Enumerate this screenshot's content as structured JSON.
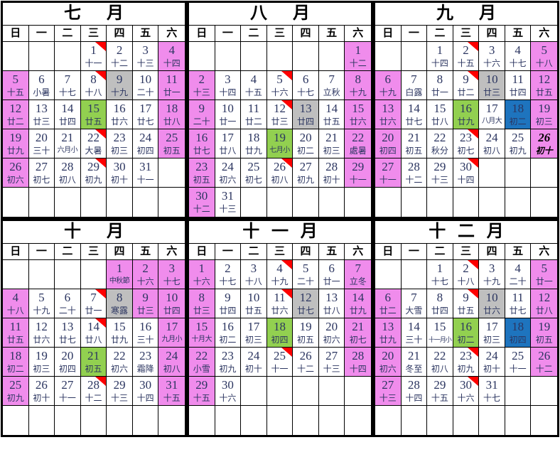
{
  "calendar": {
    "day_headers": [
      "日",
      "一",
      "二",
      "三",
      "四",
      "五",
      "六"
    ],
    "colors": {
      "pink": "#F08CEC",
      "gray": "#BFBFBF",
      "green": "#92D050",
      "blue": "#1E74BE",
      "red": "#FF0000",
      "ink": "#2B3560"
    },
    "months": [
      {
        "title": "七月",
        "cells": [
          {},
          {},
          {},
          {
            "d": "1",
            "l": "十一",
            "tri": true
          },
          {
            "d": "2",
            "l": "十二"
          },
          {
            "d": "3",
            "l": "十三"
          },
          {
            "d": "4",
            "l": "十四",
            "bg": "pink"
          },
          {
            "d": "5",
            "l": "十五",
            "bg": "pink"
          },
          {
            "d": "6",
            "l": "小暑"
          },
          {
            "d": "7",
            "l": "十七"
          },
          {
            "d": "8",
            "l": "十八",
            "tri": true
          },
          {
            "d": "9",
            "l": "十九",
            "bg": "gray"
          },
          {
            "d": "10",
            "l": "二十"
          },
          {
            "d": "11",
            "l": "廿一",
            "bg": "pink"
          },
          {
            "d": "12",
            "l": "廿二",
            "bg": "pink"
          },
          {
            "d": "13",
            "l": "廿三"
          },
          {
            "d": "14",
            "l": "廿四"
          },
          {
            "d": "15",
            "l": "廿五",
            "bg": "green"
          },
          {
            "d": "16",
            "l": "廿六"
          },
          {
            "d": "17",
            "l": "廿七"
          },
          {
            "d": "18",
            "l": "廿八",
            "bg": "pink"
          },
          {
            "d": "19",
            "l": "廿九",
            "bg": "pink"
          },
          {
            "d": "20",
            "l": "三十"
          },
          {
            "d": "21",
            "l": "六月小"
          },
          {
            "d": "22",
            "l": "大暑",
            "tri": true
          },
          {
            "d": "23",
            "l": "初三"
          },
          {
            "d": "24",
            "l": "初四"
          },
          {
            "d": "25",
            "l": "初五",
            "bg": "pink"
          },
          {
            "d": "26",
            "l": "初六",
            "bg": "pink"
          },
          {
            "d": "27",
            "l": "初七"
          },
          {
            "d": "28",
            "l": "初八"
          },
          {
            "d": "29",
            "l": "初九",
            "tri": true
          },
          {
            "d": "30",
            "l": "初十"
          },
          {
            "d": "31",
            "l": "十一"
          },
          {},
          {},
          {},
          {},
          {},
          {},
          {},
          {}
        ]
      },
      {
        "title": "八月",
        "cells": [
          {},
          {},
          {},
          {},
          {},
          {},
          {
            "d": "1",
            "l": "十二",
            "bg": "pink"
          },
          {
            "d": "2",
            "l": "十三",
            "bg": "pink"
          },
          {
            "d": "3",
            "l": "十四"
          },
          {
            "d": "4",
            "l": "十五"
          },
          {
            "d": "5",
            "l": "十六",
            "tri": true
          },
          {
            "d": "6",
            "l": "十七"
          },
          {
            "d": "7",
            "l": "立秋"
          },
          {
            "d": "8",
            "l": "十九",
            "bg": "pink"
          },
          {
            "d": "9",
            "l": "二十",
            "bg": "pink"
          },
          {
            "d": "10",
            "l": "廿一"
          },
          {
            "d": "11",
            "l": "廿二"
          },
          {
            "d": "12",
            "l": "廿三",
            "tri": true
          },
          {
            "d": "13",
            "l": "廿四",
            "bg": "gray"
          },
          {
            "d": "14",
            "l": "廿五"
          },
          {
            "d": "15",
            "l": "廿六",
            "bg": "pink"
          },
          {
            "d": "16",
            "l": "廿七",
            "bg": "pink"
          },
          {
            "d": "17",
            "l": "廿八"
          },
          {
            "d": "18",
            "l": "廿九"
          },
          {
            "d": "19",
            "l": "七月小",
            "bg": "green"
          },
          {
            "d": "20",
            "l": "初二"
          },
          {
            "d": "21",
            "l": "初三"
          },
          {
            "d": "22",
            "l": "處暑",
            "bg": "pink"
          },
          {
            "d": "23",
            "l": "初五",
            "bg": "pink"
          },
          {
            "d": "24",
            "l": "初六"
          },
          {
            "d": "25",
            "l": "初七"
          },
          {
            "d": "26",
            "l": "初八",
            "tri": true
          },
          {
            "d": "27",
            "l": "初九"
          },
          {
            "d": "28",
            "l": "初十"
          },
          {
            "d": "29",
            "l": "十一",
            "bg": "pink"
          },
          {
            "d": "30",
            "l": "十二",
            "bg": "pink"
          },
          {
            "d": "31",
            "l": "十三"
          },
          {},
          {},
          {},
          {},
          {}
        ]
      },
      {
        "title": "九月",
        "cells": [
          {},
          {},
          {
            "d": "1",
            "l": "十四"
          },
          {
            "d": "2",
            "l": "十五",
            "tri": true
          },
          {
            "d": "3",
            "l": "十六"
          },
          {
            "d": "4",
            "l": "十七"
          },
          {
            "d": "5",
            "l": "十八",
            "bg": "pink"
          },
          {
            "d": "6",
            "l": "十九",
            "bg": "pink"
          },
          {
            "d": "7",
            "l": "白露"
          },
          {
            "d": "8",
            "l": "廿一"
          },
          {
            "d": "9",
            "l": "廿二",
            "tri": true
          },
          {
            "d": "10",
            "l": "廿三",
            "bg": "gray"
          },
          {
            "d": "11",
            "l": "廿四"
          },
          {
            "d": "12",
            "l": "廿五",
            "bg": "pink"
          },
          {
            "d": "13",
            "l": "廿六",
            "bg": "pink"
          },
          {
            "d": "14",
            "l": "廿七"
          },
          {
            "d": "15",
            "l": "廿八"
          },
          {
            "d": "16",
            "l": "廿九",
            "bg": "green"
          },
          {
            "d": "17",
            "l": "八月大"
          },
          {
            "d": "18",
            "l": "初二",
            "bg": "blue"
          },
          {
            "d": "19",
            "l": "初三",
            "bg": "pink"
          },
          {
            "d": "20",
            "l": "初四",
            "bg": "pink"
          },
          {
            "d": "21",
            "l": "初五"
          },
          {
            "d": "22",
            "l": "秋分"
          },
          {
            "d": "23",
            "l": "初七",
            "tri": true
          },
          {
            "d": "24",
            "l": "初八"
          },
          {
            "d": "25",
            "l": "初九"
          },
          {
            "d": "26",
            "l": "初十",
            "bg": "pink",
            "today": true
          },
          {
            "d": "27",
            "l": "十一",
            "bg": "pink"
          },
          {
            "d": "28",
            "l": "十二"
          },
          {
            "d": "29",
            "l": "十三"
          },
          {
            "d": "30",
            "l": "十四",
            "tri": true
          },
          {},
          {},
          {},
          {},
          {},
          {},
          {},
          {},
          {},
          {}
        ]
      },
      {
        "title": "十月",
        "cells": [
          {},
          {},
          {},
          {},
          {
            "d": "1",
            "l": "中秋節",
            "bg": "pink"
          },
          {
            "d": "2",
            "l": "十六",
            "bg": "pink"
          },
          {
            "d": "3",
            "l": "十七",
            "bg": "pink"
          },
          {
            "d": "4",
            "l": "十八",
            "bg": "pink"
          },
          {
            "d": "5",
            "l": "十九"
          },
          {
            "d": "6",
            "l": "二十"
          },
          {
            "d": "7",
            "l": "廿一",
            "tri": true
          },
          {
            "d": "8",
            "l": "寒露",
            "bg": "gray"
          },
          {
            "d": "9",
            "l": "廿三",
            "bg": "pink"
          },
          {
            "d": "10",
            "l": "廿四",
            "bg": "pink"
          },
          {
            "d": "11",
            "l": "廿五",
            "bg": "pink"
          },
          {
            "d": "12",
            "l": "廿六"
          },
          {
            "d": "13",
            "l": "廿七"
          },
          {
            "d": "14",
            "l": "廿八",
            "tri": true
          },
          {
            "d": "15",
            "l": "廿九"
          },
          {
            "d": "16",
            "l": "三十"
          },
          {
            "d": "17",
            "l": "九月小",
            "bg": "pink"
          },
          {
            "d": "18",
            "l": "初二",
            "bg": "pink"
          },
          {
            "d": "19",
            "l": "初三"
          },
          {
            "d": "20",
            "l": "初四"
          },
          {
            "d": "21",
            "l": "初五",
            "bg": "green"
          },
          {
            "d": "22",
            "l": "初六"
          },
          {
            "d": "23",
            "l": "霜降"
          },
          {
            "d": "24",
            "l": "初八",
            "bg": "pink"
          },
          {
            "d": "25",
            "l": "初九",
            "bg": "pink"
          },
          {
            "d": "26",
            "l": "初十"
          },
          {
            "d": "27",
            "l": "十一"
          },
          {
            "d": "28",
            "l": "十二",
            "tri": true
          },
          {
            "d": "29",
            "l": "十三"
          },
          {
            "d": "30",
            "l": "十四"
          },
          {
            "d": "31",
            "l": "十五",
            "bg": "pink"
          },
          {},
          {},
          {},
          {},
          {},
          {},
          {}
        ]
      },
      {
        "title": "十一月",
        "cells": [
          {
            "d": "1",
            "l": "十六",
            "bg": "pink"
          },
          {
            "d": "2",
            "l": "十七"
          },
          {
            "d": "3",
            "l": "十八"
          },
          {
            "d": "4",
            "l": "十九",
            "tri": true
          },
          {
            "d": "5",
            "l": "二十"
          },
          {
            "d": "6",
            "l": "廿一"
          },
          {
            "d": "7",
            "l": "立冬",
            "bg": "pink"
          },
          {
            "d": "8",
            "l": "廿三",
            "bg": "pink"
          },
          {
            "d": "9",
            "l": "廿四"
          },
          {
            "d": "10",
            "l": "廿五"
          },
          {
            "d": "11",
            "l": "廿六",
            "tri": true
          },
          {
            "d": "12",
            "l": "廿七",
            "bg": "gray"
          },
          {
            "d": "13",
            "l": "廿八"
          },
          {
            "d": "14",
            "l": "廿九",
            "bg": "pink"
          },
          {
            "d": "15",
            "l": "十月大",
            "bg": "pink"
          },
          {
            "d": "16",
            "l": "初二"
          },
          {
            "d": "17",
            "l": "初三"
          },
          {
            "d": "18",
            "l": "初四",
            "bg": "green"
          },
          {
            "d": "19",
            "l": "初五"
          },
          {
            "d": "20",
            "l": "初六"
          },
          {
            "d": "21",
            "l": "初七",
            "bg": "pink"
          },
          {
            "d": "22",
            "l": "小雪",
            "bg": "pink"
          },
          {
            "d": "23",
            "l": "初九"
          },
          {
            "d": "24",
            "l": "初十"
          },
          {
            "d": "25",
            "l": "十一",
            "tri": true
          },
          {
            "d": "26",
            "l": "十二"
          },
          {
            "d": "27",
            "l": "十三"
          },
          {
            "d": "28",
            "l": "十四",
            "bg": "pink"
          },
          {
            "d": "29",
            "l": "十五",
            "bg": "pink"
          },
          {
            "d": "30",
            "l": "十六"
          },
          {},
          {},
          {},
          {},
          {},
          {},
          {},
          {},
          {},
          {},
          {},
          {}
        ]
      },
      {
        "title": "十二月",
        "cells": [
          {},
          {},
          {
            "d": "1",
            "l": "十七"
          },
          {
            "d": "2",
            "l": "十八",
            "tri": true
          },
          {
            "d": "3",
            "l": "十九"
          },
          {
            "d": "4",
            "l": "二十"
          },
          {
            "d": "5",
            "l": "廿一",
            "bg": "pink"
          },
          {
            "d": "6",
            "l": "廿二",
            "bg": "pink"
          },
          {
            "d": "7",
            "l": "大雪"
          },
          {
            "d": "8",
            "l": "廿四"
          },
          {
            "d": "9",
            "l": "廿五",
            "tri": true
          },
          {
            "d": "10",
            "l": "廿六",
            "bg": "gray"
          },
          {
            "d": "11",
            "l": "廿七"
          },
          {
            "d": "12",
            "l": "廿八",
            "bg": "pink"
          },
          {
            "d": "13",
            "l": "廿九",
            "bg": "pink"
          },
          {
            "d": "14",
            "l": "三十"
          },
          {
            "d": "15",
            "l": "十一月小"
          },
          {
            "d": "16",
            "l": "初二",
            "bg": "green"
          },
          {
            "d": "17",
            "l": "初三"
          },
          {
            "d": "18",
            "l": "初四",
            "bg": "blue"
          },
          {
            "d": "19",
            "l": "初五",
            "bg": "pink"
          },
          {
            "d": "20",
            "l": "初六",
            "bg": "pink"
          },
          {
            "d": "21",
            "l": "冬至"
          },
          {
            "d": "22",
            "l": "初八"
          },
          {
            "d": "23",
            "l": "初九",
            "tri": true
          },
          {
            "d": "24",
            "l": "初十"
          },
          {
            "d": "25",
            "l": "十一"
          },
          {
            "d": "26",
            "l": "十二",
            "bg": "pink"
          },
          {
            "d": "27",
            "l": "十三",
            "bg": "pink"
          },
          {
            "d": "28",
            "l": "十四"
          },
          {
            "d": "29",
            "l": "十五"
          },
          {
            "d": "30",
            "l": "十六",
            "tri": true
          },
          {
            "d": "31",
            "l": "十七"
          },
          {},
          {},
          {},
          {},
          {},
          {},
          {},
          {},
          {}
        ]
      }
    ]
  }
}
